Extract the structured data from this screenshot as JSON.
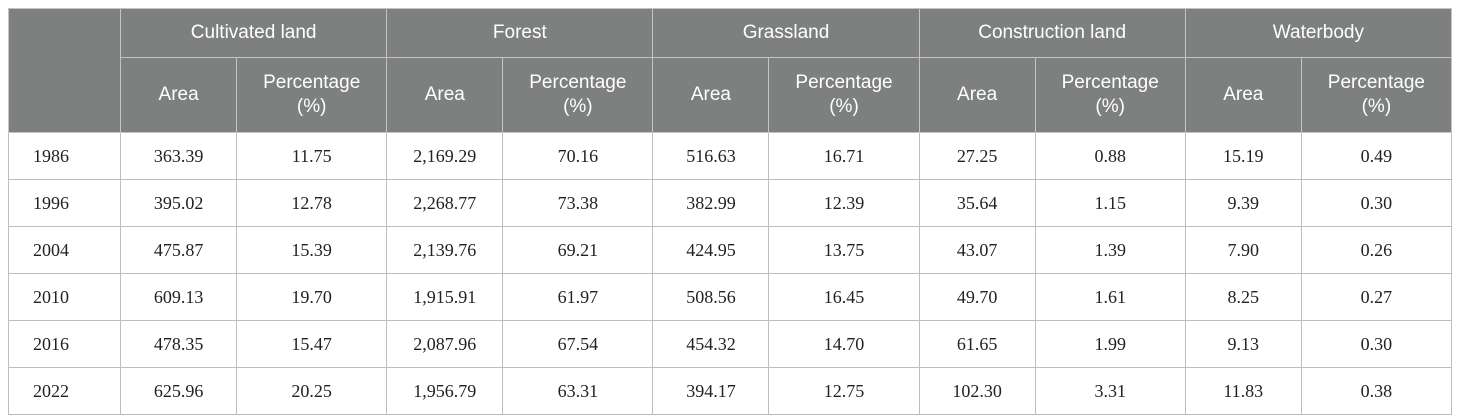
{
  "table": {
    "groups": [
      "Cultivated land",
      "Forest",
      "Grassland",
      "Construction land",
      "Waterbody"
    ],
    "subheaders": {
      "area": "Area",
      "percentage_line1": "Percentage",
      "percentage_line2": "(%)"
    },
    "rows": [
      {
        "year": "1986",
        "cells": [
          "363.39",
          "11.75",
          "2,169.29",
          "70.16",
          "516.63",
          "16.71",
          "27.25",
          "0.88",
          "15.19",
          "0.49"
        ]
      },
      {
        "year": "1996",
        "cells": [
          "395.02",
          "12.78",
          "2,268.77",
          "73.38",
          "382.99",
          "12.39",
          "35.64",
          "1.15",
          "9.39",
          "0.30"
        ]
      },
      {
        "year": "2004",
        "cells": [
          "475.87",
          "15.39",
          "2,139.76",
          "69.21",
          "424.95",
          "13.75",
          "43.07",
          "1.39",
          "7.90",
          "0.26"
        ]
      },
      {
        "year": "2010",
        "cells": [
          "609.13",
          "19.70",
          "1,915.91",
          "61.97",
          "508.56",
          "16.45",
          "49.70",
          "1.61",
          "8.25",
          "0.27"
        ]
      },
      {
        "year": "2016",
        "cells": [
          "478.35",
          "15.47",
          "2,087.96",
          "67.54",
          "454.32",
          "14.70",
          "61.65",
          "1.99",
          "9.13",
          "0.30"
        ]
      },
      {
        "year": "2022",
        "cells": [
          "625.96",
          "20.25",
          "1,956.79",
          "63.31",
          "394.17",
          "12.75",
          "102.30",
          "3.31",
          "11.83",
          "0.38"
        ]
      }
    ]
  }
}
